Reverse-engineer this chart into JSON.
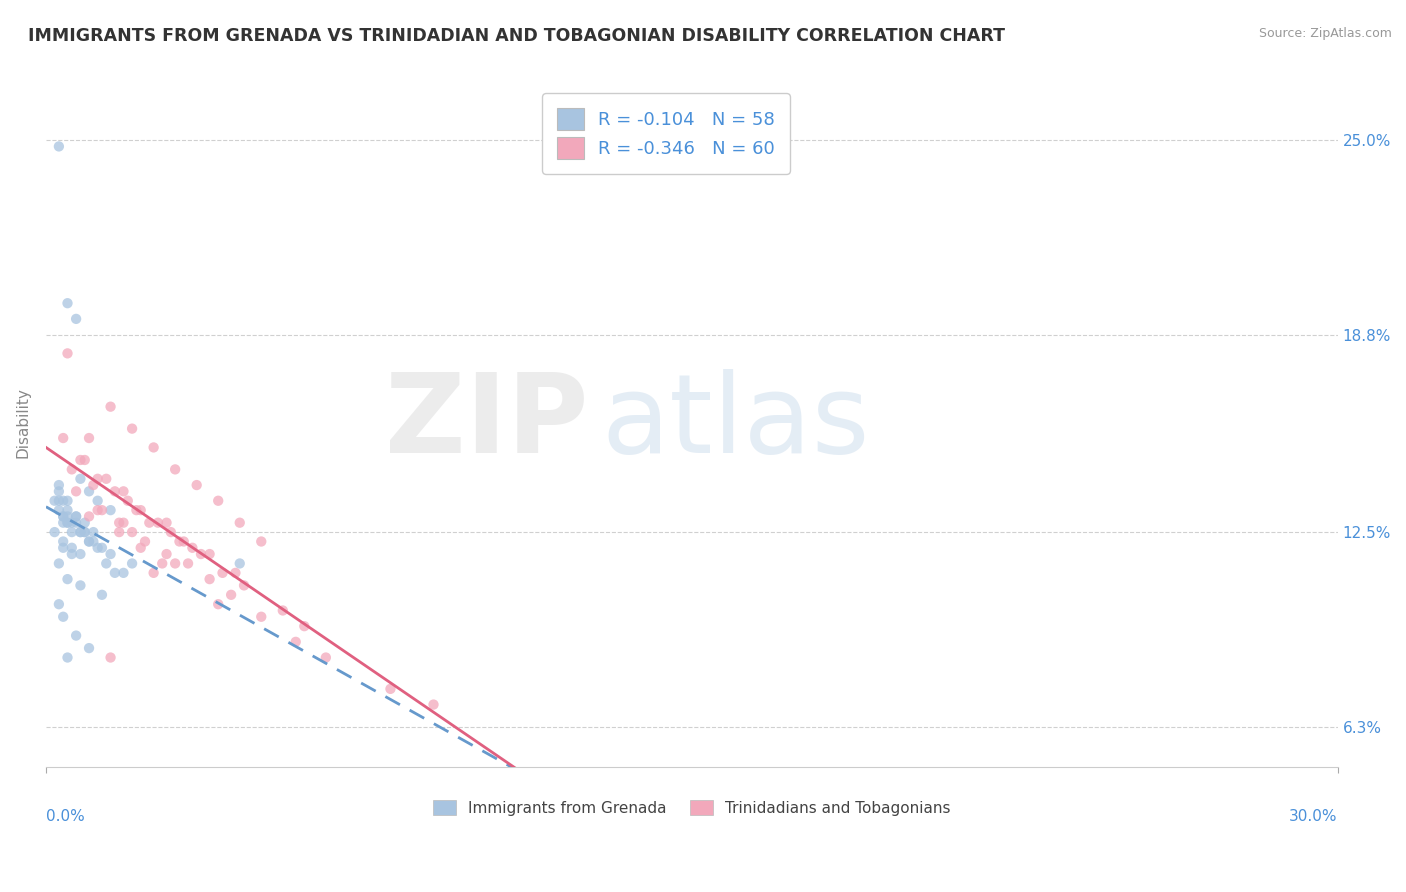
{
  "title": "IMMIGRANTS FROM GRENADA VS TRINIDADIAN AND TOBAGONIAN DISABILITY CORRELATION CHART",
  "source": "Source: ZipAtlas.com",
  "ylabel_label": "Disability",
  "legend_label1": "Immigrants from Grenada",
  "legend_label2": "Trinidadians and Tobagonians",
  "R1": -0.104,
  "N1": 58,
  "R2": -0.346,
  "N2": 60,
  "color_blue": "#a8c4e0",
  "color_pink": "#f2a8bb",
  "color_blue_line": "#6699cc",
  "color_pink_line": "#e06080",
  "color_blue_text": "#4a90d9",
  "x_min": 0.0,
  "x_max": 30.0,
  "y_min": 5.0,
  "y_max": 27.0,
  "yticks": [
    6.3,
    12.5,
    18.8,
    25.0
  ],
  "ytick_labels": [
    "6.3%",
    "12.5%",
    "18.8%",
    "25.0%"
  ],
  "blue_scatter_x": [
    0.3,
    0.5,
    0.7,
    0.8,
    1.0,
    1.2,
    1.5,
    0.4,
    0.6,
    0.9,
    0.2,
    0.4,
    0.5,
    0.8,
    1.0,
    1.3,
    0.3,
    0.5,
    0.7,
    1.1,
    0.4,
    0.6,
    0.8,
    1.4,
    1.8,
    0.3,
    0.5,
    0.7,
    0.9,
    1.2,
    0.4,
    0.6,
    1.0,
    0.3,
    0.5,
    0.8,
    1.5,
    2.0,
    0.4,
    0.7,
    1.1,
    0.3,
    0.5,
    0.9,
    0.2,
    0.4,
    0.6,
    1.6,
    0.3,
    0.5,
    0.8,
    1.3,
    0.4,
    0.7,
    1.0,
    0.3,
    0.5,
    4.5
  ],
  "blue_scatter_y": [
    24.8,
    19.8,
    19.3,
    14.2,
    13.8,
    13.5,
    13.2,
    13.0,
    12.8,
    12.5,
    13.5,
    13.0,
    12.8,
    12.5,
    12.2,
    12.0,
    13.8,
    13.2,
    13.0,
    12.5,
    12.2,
    12.0,
    11.8,
    11.5,
    11.2,
    13.5,
    13.0,
    12.8,
    12.5,
    12.0,
    12.8,
    12.5,
    12.2,
    13.2,
    12.8,
    12.5,
    11.8,
    11.5,
    13.5,
    13.0,
    12.2,
    14.0,
    13.5,
    12.8,
    12.5,
    12.0,
    11.8,
    11.2,
    11.5,
    11.0,
    10.8,
    10.5,
    9.8,
    9.2,
    8.8,
    10.2,
    8.5,
    11.5
  ],
  "pink_scatter_x": [
    0.5,
    1.0,
    1.5,
    2.0,
    2.5,
    3.0,
    3.5,
    4.0,
    4.5,
    5.0,
    0.8,
    1.2,
    1.8,
    2.2,
    2.8,
    3.2,
    3.8,
    0.4,
    0.9,
    1.4,
    1.9,
    2.4,
    2.9,
    3.4,
    4.4,
    0.6,
    1.1,
    1.6,
    2.1,
    2.6,
    3.1,
    3.6,
    4.1,
    4.6,
    5.5,
    0.7,
    1.3,
    1.8,
    2.3,
    2.8,
    3.3,
    3.8,
    4.3,
    5.8,
    6.5,
    2.0,
    1.5,
    2.5,
    8.0,
    9.0,
    5.0,
    1.0,
    1.2,
    1.7,
    3.0,
    4.0,
    2.2,
    2.7,
    1.7,
    6.0
  ],
  "pink_scatter_y": [
    18.2,
    15.5,
    16.5,
    15.8,
    15.2,
    14.5,
    14.0,
    13.5,
    12.8,
    12.2,
    14.8,
    14.2,
    13.8,
    13.2,
    12.8,
    12.2,
    11.8,
    15.5,
    14.8,
    14.2,
    13.5,
    12.8,
    12.5,
    12.0,
    11.2,
    14.5,
    14.0,
    13.8,
    13.2,
    12.8,
    12.2,
    11.8,
    11.2,
    10.8,
    10.0,
    13.8,
    13.2,
    12.8,
    12.2,
    11.8,
    11.5,
    11.0,
    10.5,
    9.0,
    8.5,
    12.5,
    8.5,
    11.2,
    7.5,
    7.0,
    9.8,
    13.0,
    13.2,
    12.5,
    11.5,
    10.2,
    12.0,
    11.5,
    12.8,
    9.5
  ]
}
